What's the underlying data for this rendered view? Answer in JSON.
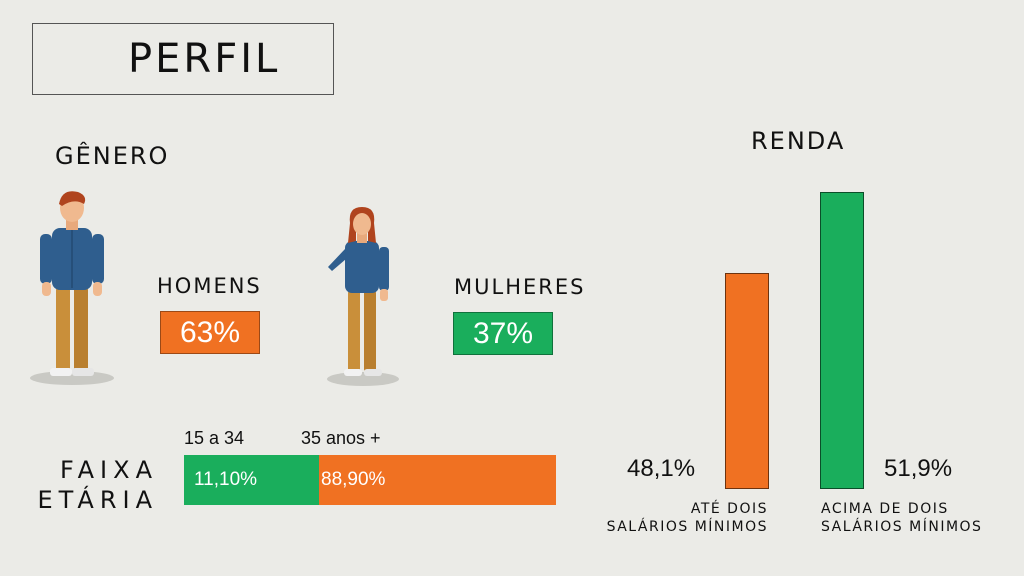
{
  "title": "PERFIL",
  "genero": {
    "label": "GÊNERO",
    "homens": {
      "label": "HOMENS",
      "value": "63%"
    },
    "mulheres": {
      "label": "MULHERES",
      "value": "37%"
    }
  },
  "faixa_etaria": {
    "label_line1": "FAIXA",
    "label_line2": "ETÁRIA"
  },
  "renda": {
    "label": "RENDA",
    "bar1_caption_line1": "ATÉ DOIS",
    "bar1_caption_line2": "SALÁRIOS MÍNIMOS",
    "bar2_caption_line1": "ACIMA DE DOIS",
    "bar2_caption_line2": "SALÁRIOS MÍNIMOS"
  },
  "colors": {
    "orange": "#f07122",
    "green": "#1aae5c",
    "background": "#ebebe7"
  },
  "icons": [
    "man-illustration",
    "woman-illustration"
  ],
  "chart_data": [
    {
      "type": "bar",
      "orientation": "horizontal-stacked",
      "categories": [
        "15 a 34",
        "35 anos +"
      ],
      "values": [
        11.1,
        88.9
      ],
      "data_labels": [
        "11,10%",
        "88,90%"
      ],
      "colors": [
        "#1aae5c",
        "#f07122"
      ]
    },
    {
      "type": "bar",
      "categories": [
        "ATÉ DOIS SALÁRIOS MÍNIMOS",
        "ACIMA DE DOIS SALÁRIOS MÍNIMOS"
      ],
      "values": [
        48.1,
        51.9
      ],
      "data_labels": [
        "48,1%",
        "51,9%"
      ],
      "colors": [
        "#f07122",
        "#1aae5c"
      ]
    }
  ]
}
